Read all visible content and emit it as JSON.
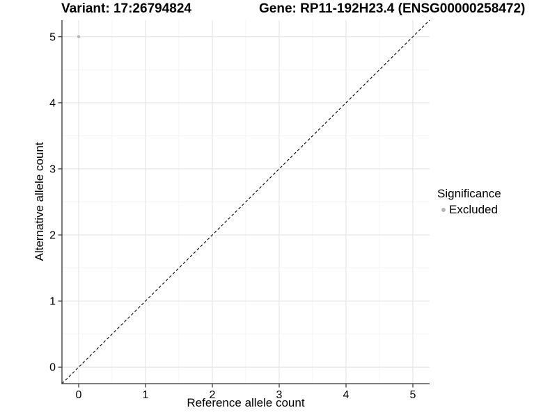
{
  "chart_data": {
    "type": "scatter",
    "titles": {
      "variant": "Variant: 17:26794824",
      "gene": "Gene: RP11-192H23.4 (ENSG00000258472)"
    },
    "xlabel": "Reference allele count",
    "ylabel": "Alternative allele count",
    "xlim": [
      -0.25,
      5.25
    ],
    "ylim": [
      -0.25,
      5.25
    ],
    "xticks": [
      0,
      1,
      2,
      3,
      4,
      5
    ],
    "yticks": [
      0,
      1,
      2,
      3,
      4,
      5
    ],
    "xminor": [
      0.5,
      1.5,
      2.5,
      3.5,
      4.5
    ],
    "yminor": [
      0.5,
      1.5,
      2.5,
      3.5,
      4.5
    ],
    "grid": "on",
    "identity_line": {
      "style": "dashed",
      "color": "#000000",
      "dash": "4 3"
    },
    "points": [
      {
        "x": 0,
        "y": 5,
        "significance": "Excluded"
      }
    ],
    "legend": {
      "title": "Significance",
      "position": "right",
      "items": [
        {
          "label": "Excluded",
          "color": "#b5b5b5"
        }
      ]
    },
    "colors": {
      "excluded_point": "#b5b5b5",
      "grid_major": "#e4e4e4",
      "grid_minor": "#efefef",
      "axis_line": "#333333",
      "tick_mark": "#333333",
      "text": "#000000",
      "background": "#ffffff"
    },
    "point_radius_px": 2.2
  }
}
